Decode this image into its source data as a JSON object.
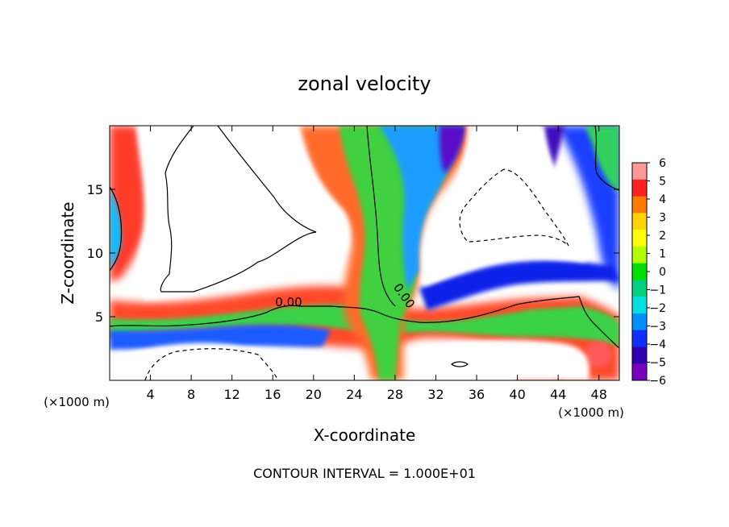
{
  "chart_data": {
    "type": "heatmap",
    "title": "zonal velocity",
    "xlabel": "X-coordinate",
    "ylabel": "Z-coordinate",
    "x_unit": "(×1000 m)",
    "x_unit_right": "(×1000 m)",
    "xlim": [
      0,
      50
    ],
    "ylim": [
      0,
      20
    ],
    "x_ticks": [
      "4",
      "8",
      "12",
      "16",
      "20",
      "24",
      "28",
      "32",
      "36",
      "40",
      "44",
      "48"
    ],
    "y_ticks": [
      "5",
      "10",
      "15"
    ],
    "colorbar": {
      "range": [
        -6,
        6
      ],
      "labels": [
        "6",
        "5",
        "4",
        "3",
        "2",
        "1",
        "0",
        "−1",
        "−2",
        "−3",
        "−4",
        "−5",
        "−6"
      ],
      "colors": [
        "#ff9999",
        "#ff2020",
        "#ff7a00",
        "#ffd200",
        "#ffff00",
        "#b0ff00",
        "#00e000",
        "#00d080",
        "#00e0e0",
        "#0090ff",
        "#1030ff",
        "#3000b0",
        "#7a00c0"
      ]
    },
    "contour_labels": [
      "0.00",
      "0.00"
    ],
    "footer": "CONTOUR INTERVAL = 1.000E+01"
  }
}
